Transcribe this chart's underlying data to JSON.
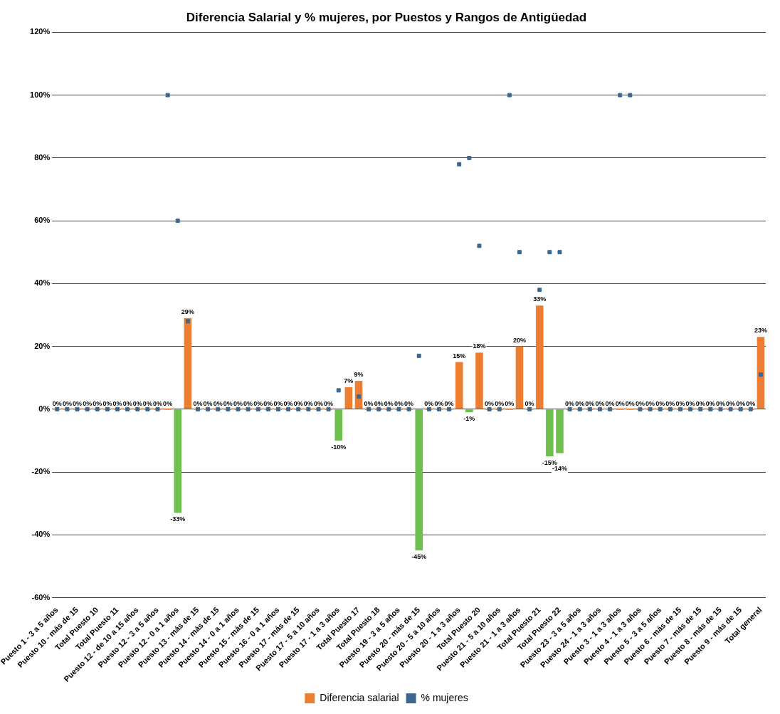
{
  "chart_data": {
    "type": "bar",
    "title": "Diferencia Salarial y % mujeres, por Puestos y Rangos de Antigüedad",
    "categories": [
      "Puesto 1 - 3 a 5 años",
      null,
      "Puesto 10 - más de 15",
      null,
      "Total Puesto 10",
      null,
      "Total Puesto 11",
      null,
      "Puesto 12 - de 10 a 15 años",
      null,
      "Puesto 12 - 3 a 5 años",
      null,
      "Puesto 12 - 0 a 1 años",
      null,
      "Puesto 13 - más de 15",
      null,
      "Puesto 14 - más de 15",
      null,
      "Puesto 14 - 0 a 1 años",
      null,
      "Puesto 15 - más de 15",
      null,
      "Puesto 16 - 0 a 1 años",
      null,
      "Puesto 17 - más de 15",
      null,
      "Puesto 17 - 5 a 10 años",
      null,
      "Puesto 17 - 1 a 3 años",
      null,
      "Total Puesto 17",
      null,
      "Total Puesto 18",
      null,
      "Puesto 19 - 3 a 5 años",
      null,
      "Puesto 20 - más de 15",
      null,
      "Puesto 20 - 5 a 10 años",
      null,
      "Puesto 20 - 1 a 3 años",
      null,
      "Total Puesto 20",
      null,
      "Puesto 21 - 5 a 10 años",
      null,
      "Puesto 21 - 1 a 3 años",
      null,
      "Total Puesto 21",
      null,
      "Total Puesto 22",
      null,
      "Puesto 23 - 3 a 5 años",
      null,
      "Puesto 24 - 1 a 3 años",
      null,
      "Puesto 3 - 1 a 3 años",
      null,
      "Puesto 4 - 1 a 3 años",
      null,
      "Puesto 5 - 3 a 5 años",
      null,
      "Puesto 6 - más de 15",
      null,
      "Puesto 7 - más de 15",
      null,
      "Puesto 8 - más de 15",
      null,
      "Puesto 9 - más de 15",
      null,
      "Total general"
    ],
    "series": [
      {
        "name": "Diferencia salarial",
        "color": "#ed7d31",
        "colors": [
          "#ed7d31",
          "#ed7d31",
          "#ed7d31",
          "#ed7d31",
          "#ed7d31",
          "#ed7d31",
          "#ed7d31",
          "#ed7d31",
          "#ed7d31",
          "#ed7d31",
          "#ed7d31",
          "#ed7d31",
          "#70c050",
          "#ed7d31",
          "#ed7d31",
          "#ed7d31",
          "#ed7d31",
          "#ed7d31",
          "#ed7d31",
          "#ed7d31",
          "#ed7d31",
          "#ed7d31",
          "#ed7d31",
          "#ed7d31",
          "#ed7d31",
          "#ed7d31",
          "#ed7d31",
          "#ed7d31",
          "#70c050",
          "#ed7d31",
          "#ed7d31",
          "#ed7d31",
          "#ed7d31",
          "#ed7d31",
          "#ed7d31",
          "#ed7d31",
          "#70c050",
          "#ed7d31",
          "#ed7d31",
          "#ed7d31",
          "#ed7d31",
          "#70c050",
          "#ed7d31",
          "#ed7d31",
          "#ed7d31",
          "#ed7d31",
          "#ed7d31",
          "#ed7d31",
          "#ed7d31",
          "#70c050",
          "#70c050",
          "#ed7d31",
          "#ed7d31",
          "#ed7d31",
          "#ed7d31",
          "#ed7d31",
          "#ed7d31",
          "#ed7d31",
          "#ed7d31",
          "#ed7d31",
          "#ed7d31",
          "#ed7d31",
          "#ed7d31",
          "#ed7d31",
          "#ed7d31",
          "#ed7d31",
          "#ed7d31",
          "#ed7d31",
          "#ed7d31",
          "#ed7d31",
          "#ed7d31"
        ],
        "values": [
          0,
          0,
          0,
          0,
          0,
          0,
          0,
          0,
          0,
          0,
          0,
          0,
          -33,
          29,
          0,
          0,
          0,
          0,
          0,
          0,
          0,
          0,
          0,
          0,
          0,
          0,
          0,
          0,
          -10,
          7,
          9,
          0,
          0,
          0,
          0,
          0,
          -45,
          0,
          0,
          0,
          15,
          -1,
          18,
          0,
          0,
          0,
          20,
          0,
          33,
          -15,
          -14,
          0,
          0,
          0,
          0,
          0,
          0,
          0,
          0,
          0,
          0,
          0,
          0,
          0,
          0,
          0,
          0,
          0,
          0,
          0,
          23
        ],
        "value_labels": [
          "0%",
          "0%",
          "0%",
          "0%",
          "0%",
          "0%",
          "0%",
          "0%",
          "0%",
          "0%",
          "0%",
          "0%",
          "-33%",
          "29%",
          "0%",
          "0%",
          "0%",
          "0%",
          "0%",
          "0%",
          "0%",
          "0%",
          "0%",
          "0%",
          "0%",
          "0%",
          "0%",
          "0%",
          "-10%",
          "7%",
          "9%",
          "0%",
          "0%",
          "0%",
          "0%",
          "0%",
          "-45%",
          "0%",
          "0%",
          "0%",
          "15%",
          "-1%",
          "18%",
          "0%",
          "0%",
          "0%",
          "20%",
          "0%",
          "33%",
          "-15%",
          "-14%",
          "0%",
          "0%",
          "0%",
          "0%",
          "0%",
          "0%",
          "0%",
          "0%",
          "0%",
          "0%",
          "0%",
          "0%",
          "0%",
          "0%",
          "0%",
          "0%",
          "0%",
          "0%",
          "0%",
          "23%"
        ]
      },
      {
        "name": "% mujeres",
        "type": "scatter",
        "color": "#3b6790",
        "values": [
          0,
          0,
          0,
          0,
          0,
          0,
          0,
          0,
          0,
          0,
          0,
          100,
          60,
          28,
          0,
          0,
          0,
          0,
          0,
          0,
          0,
          0,
          0,
          0,
          0,
          0,
          0,
          0,
          6,
          null,
          4,
          0,
          0,
          0,
          0,
          0,
          17,
          0,
          0,
          0,
          78,
          80,
          52,
          0,
          0,
          100,
          50,
          0,
          38,
          50,
          50,
          0,
          0,
          0,
          0,
          0,
          100,
          100,
          0,
          0,
          0,
          0,
          0,
          0,
          0,
          0,
          0,
          0,
          0,
          0,
          11
        ]
      }
    ],
    "ylim": [
      -60,
      120
    ],
    "yticks": [
      {
        "value": -60,
        "label": "-60%"
      },
      {
        "value": -40,
        "label": "-40%"
      },
      {
        "value": -20,
        "label": "-20%"
      },
      {
        "value": 0,
        "label": "0%"
      },
      {
        "value": 20,
        "label": "20%"
      },
      {
        "value": 40,
        "label": "40%"
      },
      {
        "value": 60,
        "label": "60%"
      },
      {
        "value": 80,
        "label": "80%"
      },
      {
        "value": 100,
        "label": "100%"
      },
      {
        "value": 120,
        "label": "120%"
      }
    ],
    "grid": "y",
    "legend": "bottom",
    "marker": "square"
  }
}
